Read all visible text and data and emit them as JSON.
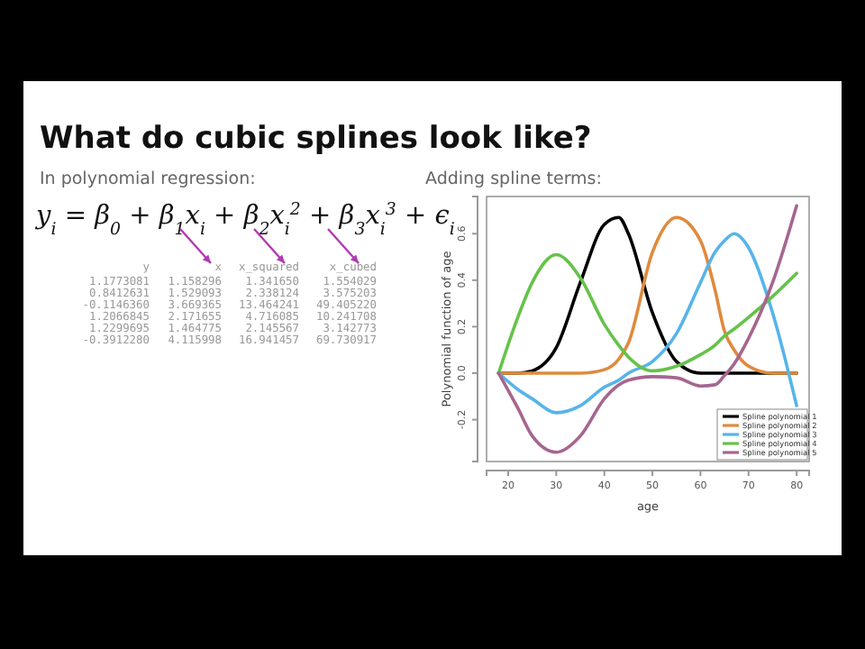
{
  "chart_data": {
    "type": "line",
    "title": "What do cubic splines look like?",
    "xlabel": "age",
    "ylabel": "Polynomial function of age",
    "x": [
      18,
      22,
      25,
      30,
      35,
      40,
      43,
      45,
      50,
      55,
      60,
      63,
      65,
      67,
      70,
      75,
      80
    ],
    "series": [
      {
        "name": "Spline polynomial 1",
        "color": "#000000",
        "values": [
          0,
          0,
          0.01,
          0.11,
          0.39,
          0.64,
          0.67,
          0.6,
          0.26,
          0.05,
          0,
          0,
          0,
          0,
          0,
          0,
          0
        ]
      },
      {
        "name": "Spline polynomial 2",
        "color": "#e08a3c",
        "values": [
          0,
          0,
          0,
          0,
          0,
          0.015,
          0.06,
          0.13,
          0.52,
          0.67,
          0.57,
          0.36,
          0.18,
          0.1,
          0.03,
          0,
          0
        ]
      },
      {
        "name": "Spline polynomial 3",
        "color": "#56b4e9",
        "values": [
          0,
          -0.07,
          -0.11,
          -0.17,
          -0.14,
          -0.06,
          -0.03,
          0,
          0.05,
          0.17,
          0.39,
          0.52,
          0.57,
          0.6,
          0.54,
          0.26,
          -0.14
        ]
      },
      {
        "name": "Spline polynomial 4",
        "color": "#66c24a",
        "values": [
          0,
          0.24,
          0.39,
          0.51,
          0.41,
          0.21,
          0.12,
          0.07,
          0.01,
          0.03,
          0.08,
          0.12,
          0.16,
          0.19,
          0.24,
          0.33,
          0.43
        ]
      },
      {
        "name": "Spline polynomial 5",
        "color": "#a5668f",
        "values": [
          0,
          -0.15,
          -0.27,
          -0.34,
          -0.27,
          -0.11,
          -0.05,
          -0.03,
          -0.015,
          -0.02,
          -0.055,
          -0.05,
          -0.01,
          0.04,
          0.15,
          0.39,
          0.72
        ]
      }
    ],
    "xlim": [
      15.5,
      82.6
    ],
    "xticks": [
      20,
      30,
      40,
      50,
      60,
      70,
      80
    ],
    "ylim": [
      -0.38,
      0.76
    ],
    "yticks": [
      -0.2,
      {
        "value": 0,
        "label": "0.0"
      },
      0.2,
      0.4,
      0.6
    ],
    "legend": "bottom right",
    "grid": false,
    "line_style": "solid",
    "marker": "none",
    "annotations": [
      "In polynomial regression:",
      "y$_{i}$ = β$_{0}$ + β$_{1}$x$_{i}$ + β$_{2}$x$_{i}$$^{2}$ + β$_{3}$x$_{i}$$^{3}$ + ϵ$_{i}$",
      "y x x_squared x_cubed",
      "1.1773081 1.158296 1.341650 1.554029",
      "0.8412631 1.529093 2.338124 3.575203",
      "-0.1146360 3.669365 13.464241 49.405220",
      "1.2066845 2.171655 4.716085 10.241708",
      "1.2299695 1.464775 2.145567 3.142773",
      "-0.3912280 4.115998 16.941457 69.730917",
      "Adding spline terms:"
    ]
  }
}
